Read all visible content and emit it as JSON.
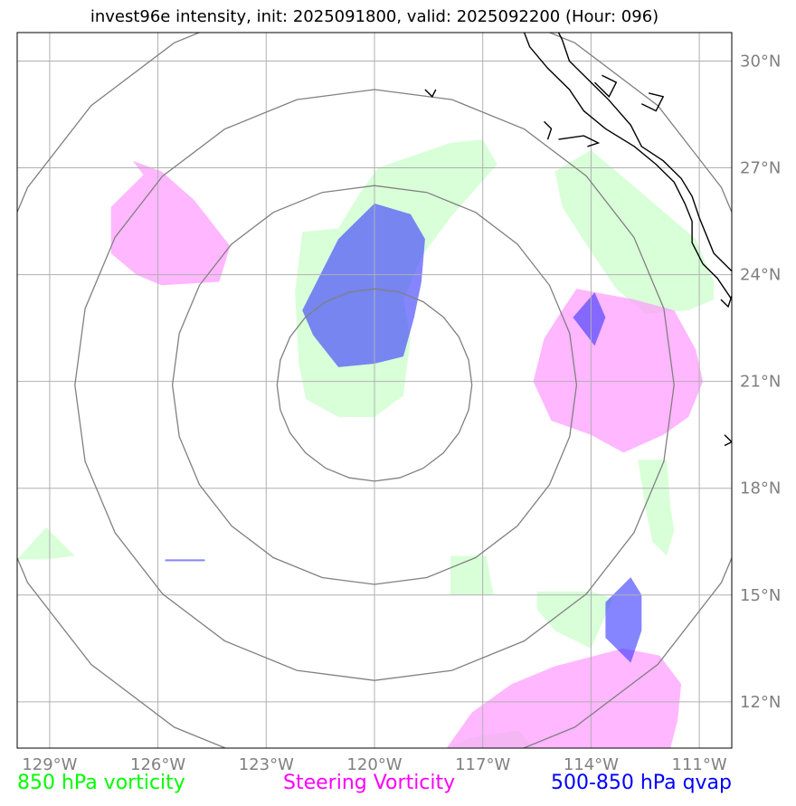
{
  "title": "invest96e intensity, init: 2025091800, valid: 2025092200 (Hour: 096)",
  "map": {
    "lon_range": [
      -129.9,
      -110.1
    ],
    "lat_range": [
      10.7,
      30.8
    ],
    "center": {
      "lon": -120.0,
      "lat": 20.9
    },
    "range_rings": [
      2.7,
      5.6,
      8.3,
      11.1
    ],
    "lon_ticks": [
      {
        "value": -129,
        "label": "129°W"
      },
      {
        "value": -126,
        "label": "126°W"
      },
      {
        "value": -123,
        "label": "123°W"
      },
      {
        "value": -120,
        "label": "120°W"
      },
      {
        "value": -117,
        "label": "117°W"
      },
      {
        "value": -114,
        "label": "114°W"
      },
      {
        "value": -111,
        "label": "111°W"
      }
    ],
    "lat_ticks": [
      {
        "value": 30,
        "label": "30°N"
      },
      {
        "value": 27,
        "label": "27°N"
      },
      {
        "value": 24,
        "label": "24°N"
      },
      {
        "value": 21,
        "label": "21°N"
      },
      {
        "value": 18,
        "label": "18°N"
      },
      {
        "value": 15,
        "label": "15°N"
      },
      {
        "value": 12,
        "label": "12°N"
      }
    ],
    "colors": {
      "vort850": "#ccffcc",
      "steering": "#ff99ff",
      "qvap": "#3333ff",
      "grid": "#b0b0b0",
      "ring": "#808080",
      "coast": "#000000"
    }
  },
  "fields": {
    "vort850": [
      [
        [
          -119.9,
          27.0
        ],
        [
          -117.9,
          27.7
        ],
        [
          -117.0,
          27.8
        ],
        [
          -116.6,
          27.1
        ],
        [
          -117.9,
          25.6
        ],
        [
          -118.7,
          24.5
        ],
        [
          -119.2,
          23.3
        ],
        [
          -119.0,
          22.2
        ],
        [
          -119.2,
          20.6
        ],
        [
          -120.0,
          20.0
        ],
        [
          -121.0,
          20.0
        ],
        [
          -121.9,
          20.5
        ],
        [
          -122.1,
          21.5
        ],
        [
          -122.2,
          23.5
        ],
        [
          -122.0,
          25.2
        ],
        [
          -121.0,
          25.3
        ],
        [
          -120.4,
          26.3
        ]
      ],
      [
        [
          -115.0,
          26.9
        ],
        [
          -114.0,
          27.5
        ],
        [
          -112.6,
          26.3
        ],
        [
          -111.1,
          25.0
        ],
        [
          -110.6,
          23.8
        ],
        [
          -110.6,
          23.3
        ],
        [
          -111.3,
          23.0
        ],
        [
          -112.5,
          22.9
        ],
        [
          -113.3,
          23.6
        ],
        [
          -114.1,
          24.8
        ],
        [
          -114.8,
          25.9
        ]
      ],
      [
        [
          -112.7,
          18.8
        ],
        [
          -111.9,
          18.8
        ],
        [
          -111.8,
          17.5
        ],
        [
          -111.7,
          16.8
        ],
        [
          -111.9,
          16.1
        ],
        [
          -112.3,
          16.5
        ],
        [
          -112.5,
          17.5
        ]
      ],
      [
        [
          -129.9,
          16.0
        ],
        [
          -129.1,
          16.9
        ],
        [
          -128.3,
          16.1
        ],
        [
          -129.1,
          16.0
        ]
      ],
      [
        [
          -117.9,
          16.1
        ],
        [
          -116.9,
          16.1
        ],
        [
          -116.7,
          15.0
        ],
        [
          -117.9,
          15.0
        ]
      ],
      [
        [
          -115.5,
          15.1
        ],
        [
          -114.0,
          15.1
        ],
        [
          -113.4,
          14.9
        ],
        [
          -114.0,
          13.5
        ],
        [
          -115.0,
          14.0
        ],
        [
          -115.5,
          14.6
        ]
      ],
      [
        [
          -118.0,
          10.7
        ],
        [
          -117.3,
          11.0
        ],
        [
          -116.0,
          11.2
        ],
        [
          -115.6,
          10.7
        ]
      ]
    ],
    "steering": [
      [
        [
          -126.7,
          27.2
        ],
        [
          -125.9,
          26.9
        ],
        [
          -125.0,
          26.1
        ],
        [
          -124.0,
          24.8
        ],
        [
          -124.3,
          23.8
        ],
        [
          -125.9,
          23.7
        ],
        [
          -126.6,
          24.0
        ],
        [
          -127.3,
          24.6
        ],
        [
          -127.3,
          25.9
        ],
        [
          -126.4,
          26.8
        ]
      ],
      [
        [
          -114.4,
          23.6
        ],
        [
          -112.8,
          23.3
        ],
        [
          -111.7,
          23.0
        ],
        [
          -111.1,
          21.9
        ],
        [
          -110.9,
          21.0
        ],
        [
          -111.3,
          20.0
        ],
        [
          -112.0,
          19.5
        ],
        [
          -113.1,
          19.0
        ],
        [
          -114.0,
          19.5
        ],
        [
          -115.1,
          19.9
        ],
        [
          -115.6,
          21.0
        ],
        [
          -115.3,
          22.2
        ],
        [
          -114.8,
          23.0
        ]
      ],
      [
        [
          -118.0,
          10.7
        ],
        [
          -117.3,
          11.7
        ],
        [
          -116.2,
          12.5
        ],
        [
          -115.0,
          13.0
        ],
        [
          -113.1,
          13.5
        ],
        [
          -112.1,
          13.3
        ],
        [
          -111.5,
          12.5
        ],
        [
          -111.6,
          11.5
        ],
        [
          -111.8,
          10.7
        ]
      ],
      [
        [
          -129.9,
          10.7
        ],
        [
          -129.9,
          10.7
        ]
      ]
    ],
    "qvap": [
      [
        [
          -120.0,
          26.0
        ],
        [
          -119.0,
          25.7
        ],
        [
          -118.6,
          25.0
        ],
        [
          -118.7,
          23.8
        ],
        [
          -118.9,
          22.8
        ],
        [
          -119.2,
          21.7
        ],
        [
          -120.0,
          21.5
        ],
        [
          -121.0,
          21.4
        ],
        [
          -121.7,
          22.3
        ],
        [
          -122.0,
          23.0
        ],
        [
          -121.4,
          24.2
        ],
        [
          -121.0,
          25.0
        ]
      ],
      [
        [
          -113.9,
          23.5
        ],
        [
          -113.6,
          22.8
        ],
        [
          -113.9,
          22.0
        ],
        [
          -114.5,
          22.8
        ]
      ],
      [
        [
          -112.9,
          15.5
        ],
        [
          -112.6,
          15.0
        ],
        [
          -112.6,
          14.0
        ],
        [
          -112.9,
          13.1
        ],
        [
          -113.6,
          13.8
        ],
        [
          -113.6,
          14.8
        ]
      ],
      [
        [
          -125.8,
          16.0
        ],
        [
          -124.7,
          16.0
        ],
        [
          -124.7,
          15.95
        ],
        [
          -125.8,
          15.95
        ]
      ]
    ],
    "coast": [
      [
        [
          -116.0,
          31.2
        ],
        [
          -115.7,
          30.4
        ],
        [
          -115.2,
          29.8
        ],
        [
          -114.6,
          29.2
        ],
        [
          -114.2,
          28.6
        ],
        [
          -113.6,
          28.1
        ],
        [
          -112.8,
          27.6
        ],
        [
          -112.2,
          27.1
        ],
        [
          -111.7,
          26.6
        ],
        [
          -111.4,
          26.0
        ],
        [
          -111.2,
          25.5
        ],
        [
          -111.2,
          24.9
        ],
        [
          -110.9,
          24.3
        ],
        [
          -110.5,
          23.9
        ],
        [
          -110.1,
          23.3
        ]
      ],
      [
        [
          -114.9,
          27.8
        ],
        [
          -114.2,
          27.9
        ],
        [
          -113.8,
          27.7
        ],
        [
          -114.1,
          27.6
        ]
      ],
      [
        [
          -115.1,
          31.2
        ],
        [
          -114.8,
          30.6
        ],
        [
          -114.6,
          30.0
        ],
        [
          -114.0,
          29.4
        ],
        [
          -113.5,
          28.9
        ],
        [
          -112.9,
          28.2
        ],
        [
          -112.6,
          27.6
        ],
        [
          -112.0,
          27.2
        ],
        [
          -111.5,
          26.7
        ],
        [
          -111.2,
          26.2
        ],
        [
          -111.0,
          25.6
        ],
        [
          -110.8,
          25.1
        ],
        [
          -110.6,
          24.6
        ],
        [
          -110.1,
          24.1
        ]
      ],
      [
        [
          -113.7,
          29.6
        ],
        [
          -113.3,
          29.4
        ],
        [
          -113.5,
          29.0
        ],
        [
          -113.9,
          29.4
        ]
      ],
      [
        [
          -112.4,
          29.1
        ],
        [
          -112.0,
          29.0
        ],
        [
          -112.2,
          28.6
        ],
        [
          -112.6,
          28.8
        ]
      ],
      [
        [
          -118.6,
          29.2
        ],
        [
          -118.4,
          29.0
        ],
        [
          -118.3,
          29.2
        ]
      ],
      [
        [
          -115.3,
          28.3
        ],
        [
          -115.1,
          28.1
        ],
        [
          -115.2,
          27.8
        ]
      ],
      [
        [
          -110.4,
          23.3
        ],
        [
          -110.2,
          23.1
        ],
        [
          -110.1,
          23.4
        ]
      ],
      [
        [
          -110.3,
          19.5
        ],
        [
          -110.1,
          19.3
        ],
        [
          -110.3,
          19.2
        ]
      ]
    ]
  },
  "legend": {
    "vort850": {
      "label": "850 hPa vorticity",
      "color": "#00ff00"
    },
    "steering": {
      "label": "Steering Vorticity",
      "color": "#ff00ff"
    },
    "qvap": {
      "label": "500-850 hPa qvap",
      "color": "#0000ff"
    }
  }
}
